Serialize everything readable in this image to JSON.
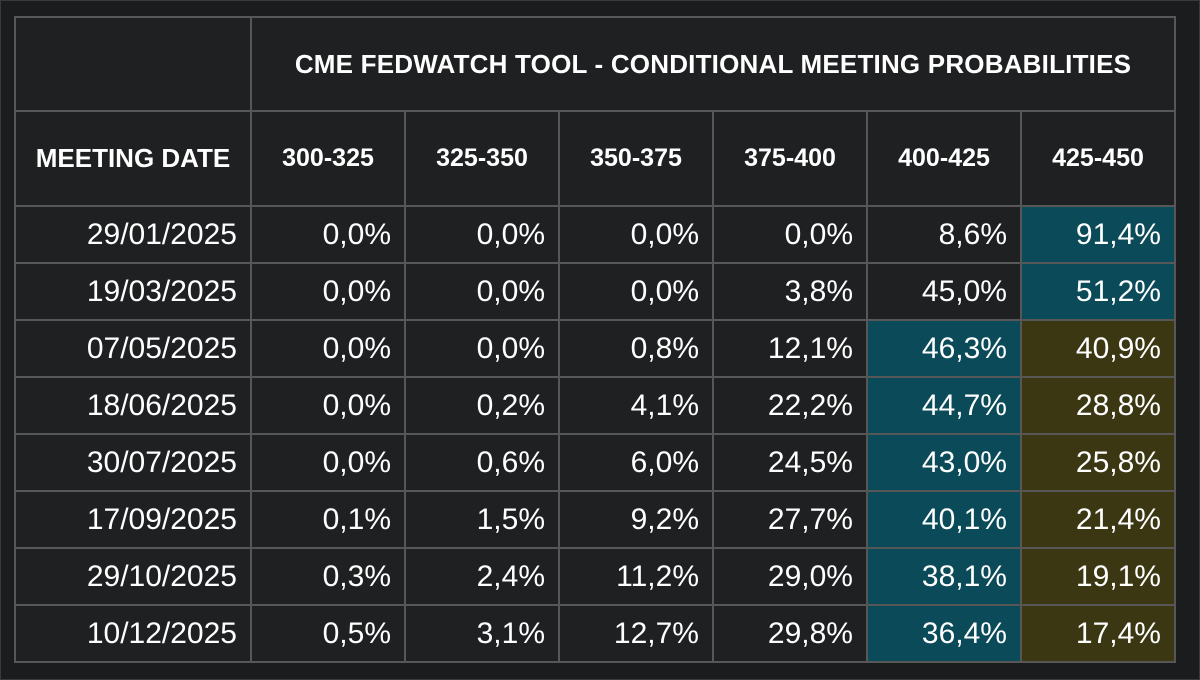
{
  "chart_data": {
    "type": "table",
    "title": "CME FEDWATCH TOOL - CONDITIONAL MEETING PROBABILITIES",
    "row_header": "MEETING DATE",
    "columns": [
      "300-325",
      "325-350",
      "350-375",
      "375-400",
      "400-425",
      "425-450"
    ],
    "rows": [
      {
        "date": "29/01/2025",
        "values": [
          "0,0%",
          "0,0%",
          "0,0%",
          "0,0%",
          "8,6%",
          "91,4%"
        ],
        "highlight": [
          null,
          null,
          null,
          null,
          null,
          "teal"
        ]
      },
      {
        "date": "19/03/2025",
        "values": [
          "0,0%",
          "0,0%",
          "0,0%",
          "3,8%",
          "45,0%",
          "51,2%"
        ],
        "highlight": [
          null,
          null,
          null,
          null,
          null,
          "teal"
        ]
      },
      {
        "date": "07/05/2025",
        "values": [
          "0,0%",
          "0,0%",
          "0,8%",
          "12,1%",
          "46,3%",
          "40,9%"
        ],
        "highlight": [
          null,
          null,
          null,
          null,
          "teal",
          "olive"
        ]
      },
      {
        "date": "18/06/2025",
        "values": [
          "0,0%",
          "0,2%",
          "4,1%",
          "22,2%",
          "44,7%",
          "28,8%"
        ],
        "highlight": [
          null,
          null,
          null,
          null,
          "teal",
          "olive"
        ]
      },
      {
        "date": "30/07/2025",
        "values": [
          "0,0%",
          "0,6%",
          "6,0%",
          "24,5%",
          "43,0%",
          "25,8%"
        ],
        "highlight": [
          null,
          null,
          null,
          null,
          "teal",
          "olive"
        ]
      },
      {
        "date": "17/09/2025",
        "values": [
          "0,1%",
          "1,5%",
          "9,2%",
          "27,7%",
          "40,1%",
          "21,4%"
        ],
        "highlight": [
          null,
          null,
          null,
          null,
          "teal",
          "olive"
        ]
      },
      {
        "date": "29/10/2025",
        "values": [
          "0,3%",
          "2,4%",
          "11,2%",
          "29,0%",
          "38,1%",
          "19,1%"
        ],
        "highlight": [
          null,
          null,
          null,
          null,
          "teal",
          "olive"
        ]
      },
      {
        "date": "10/12/2025",
        "values": [
          "0,5%",
          "3,1%",
          "12,7%",
          "29,8%",
          "36,4%",
          "17,4%"
        ],
        "highlight": [
          null,
          null,
          null,
          null,
          "teal",
          "olive"
        ]
      }
    ],
    "colors": {
      "teal": "#0b4a59",
      "olive": "#3b3713",
      "cell_background": "#1f2021",
      "border": "#575757",
      "text": "#ffffff"
    }
  }
}
